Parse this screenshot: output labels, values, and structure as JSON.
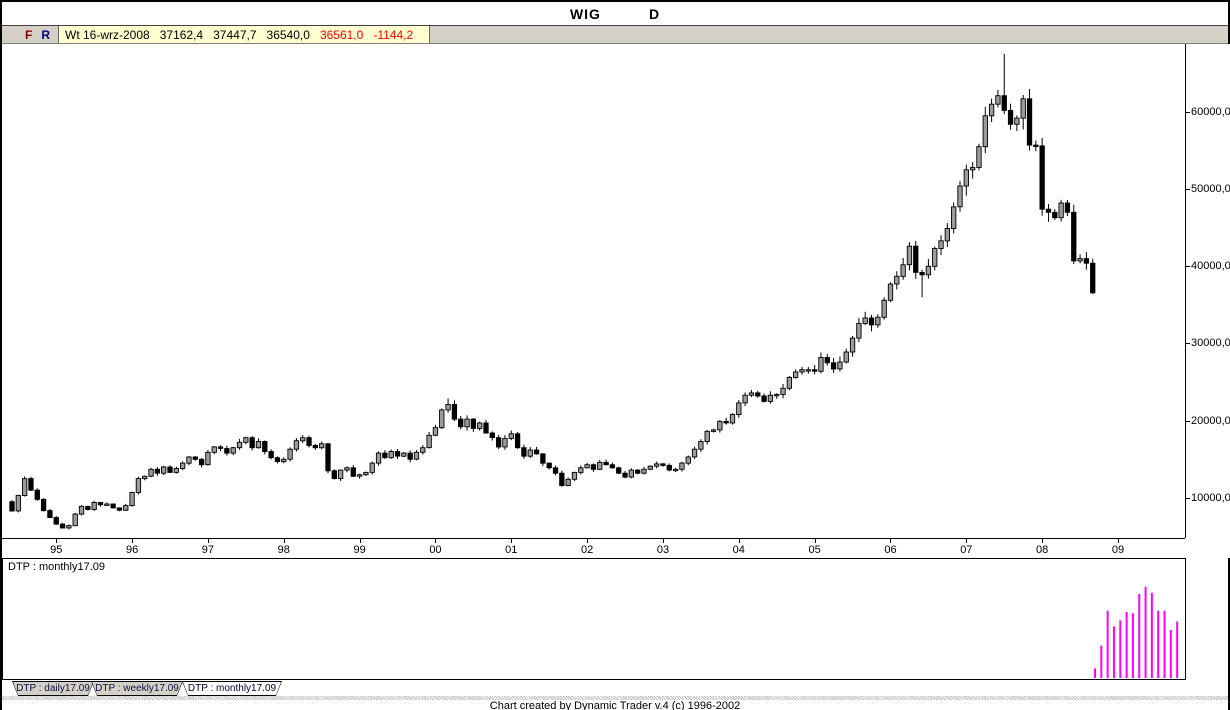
{
  "window": {
    "symbol": "WIG",
    "timeframe": "D"
  },
  "toolbar": {
    "f_button": "F",
    "r_button": "R",
    "f_color": "#8b0000",
    "r_color": "#000080",
    "quote_bg": "#ffffd0",
    "quote": {
      "date": "Wt 16-wrz-2008",
      "open": "37162,4",
      "high": "37447,7",
      "low": "36540,0",
      "close": "36561,0",
      "change": "-1144,2",
      "negative_color": "#ff0000"
    }
  },
  "chart_data": {
    "type": "candlestick",
    "title": "WIG monthly (Dynamic Trader)",
    "start_month": "1994-06",
    "end_month": "2008-09",
    "closes": [
      8300,
      10300,
      12500,
      11000,
      9800,
      8350,
      7450,
      6600,
      6100,
      6400,
      7900,
      8900,
      8500,
      9400,
      9100,
      9200,
      8700,
      8400,
      9000,
      10700,
      12500,
      12800,
      13700,
      13200,
      14000,
      13300,
      13800,
      14500,
      15300,
      15000,
      14300,
      15900,
      16600,
      16400,
      15800,
      16500,
      17200,
      17800,
      16500,
      17300,
      16000,
      15200,
      14700,
      15000,
      16300,
      17400,
      17800,
      16800,
      16500,
      17000,
      13500,
      12500,
      13600,
      13900,
      12800,
      13000,
      13300,
      14500,
      15800,
      15200,
      16000,
      15400,
      15800,
      15000,
      15900,
      16500,
      18100,
      19100,
      21400,
      22100,
      20200,
      19200,
      20200,
      19000,
      19700,
      18400,
      17800,
      16600,
      17700,
      18300,
      16500,
      15400,
      16200,
      15700,
      14500,
      13900,
      13200,
      11600,
      12400,
      13300,
      13900,
      14300,
      13700,
      14600,
      14300,
      13900,
      13200,
      12700,
      13600,
      13200,
      13700,
      14100,
      14400,
      14200,
      13600,
      13700,
      14500,
      15300,
      16300,
      17300,
      18600,
      18800,
      19900,
      19700,
      20800,
      22300,
      23300,
      23600,
      23200,
      22500,
      23300,
      23400,
      24200,
      25600,
      26300,
      26600,
      26600,
      26400,
      28200,
      27500,
      26700,
      27600,
      28900,
      30700,
      32600,
      33300,
      32400,
      33400,
      35600,
      37700,
      38700,
      40200,
      42600,
      39200,
      38900,
      40000,
      42300,
      43300,
      44900,
      47700,
      50400,
      52500,
      52800,
      55500,
      59500,
      61000,
      62100,
      60200,
      58400,
      59200,
      61700,
      55700,
      55600,
      47400,
      47000,
      46300,
      48200,
      47000,
      40700,
      41000,
      40400,
      36561
    ],
    "first_open": 9500,
    "high_overrides": {
      "69": 22868,
      "157": 67500
    },
    "low_overrides": {
      "9": 5905,
      "144": 36000,
      "171": 36400
    },
    "up_fill": "#9c9c9c",
    "down_fill": "#000000",
    "ylim": [
      4800,
      68800
    ],
    "y_ticks": [
      10000,
      20000,
      30000,
      40000,
      50000,
      60000
    ],
    "y_tick_labels": [
      "10000,0",
      "20000,0",
      "30000,0",
      "40000,0",
      "50000,0",
      "60000,0"
    ],
    "x_ticks": [
      "95",
      "96",
      "97",
      "98",
      "99",
      "00",
      "01",
      "02",
      "03",
      "04",
      "05",
      "06",
      "07",
      "08",
      "09"
    ],
    "grid": "off",
    "indicator": {
      "label": "DTP : monthly17.09",
      "type": "bar",
      "color": "#ff00ff",
      "bar_heights_pct": [
        8,
        27,
        56,
        43,
        48,
        55,
        54,
        70,
        76,
        71,
        56,
        56,
        40,
        47
      ]
    }
  },
  "tabs": [
    {
      "label": "DTP : daily17.09",
      "active": false
    },
    {
      "label": "DTP : weekly17.09",
      "active": false
    },
    {
      "label": "DTP : monthly17.09",
      "active": true
    }
  ],
  "statusbar": {
    "text": "Chart created by Dynamic Trader v.4  (c) 1996-2002"
  }
}
